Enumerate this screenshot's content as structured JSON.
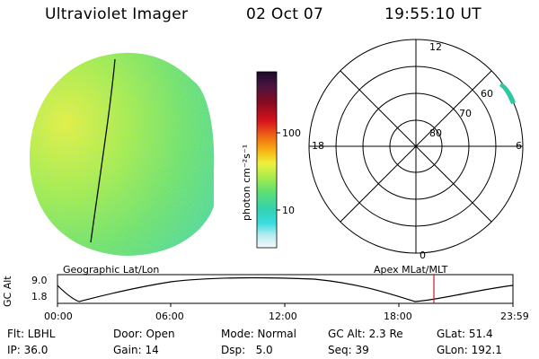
{
  "header": {
    "instrument": "Ultraviolet Imager",
    "date": "02 Oct 07",
    "time": "19:55:10 UT"
  },
  "colorbar": {
    "label": "photon cm⁻²s⁻¹",
    "ticks": [
      "100",
      "10"
    ]
  },
  "polar_plot": {
    "mlt_labels": {
      "top": "12",
      "left": "18",
      "right": "6",
      "bottom": "0"
    },
    "mlat_labels": [
      "60",
      "70",
      "80"
    ]
  },
  "timeline": {
    "ylabel": "GC Alt",
    "y_ticks": [
      "9.0",
      "1.8"
    ],
    "left_caption": "Geographic Lat/Lon",
    "right_caption": "Apex MLat/MLT",
    "x_ticks": [
      "00:00",
      "06:00",
      "12:00",
      "18:00",
      "23:59"
    ]
  },
  "info": {
    "filter": "Flt: LBHL",
    "door": "Door: Open",
    "mode": "Mode: Normal",
    "gc_alt": "GC Alt: 2.3 Re",
    "glat": "GLat: 51.4",
    "ip": "IP: 36.0",
    "gain": "Gain: 14",
    "dsp": "Dsp:   5.0",
    "seq": "Seq: 39",
    "glon": "GLon: 192.1"
  },
  "colors": {
    "disk_bright": "#c8f03c",
    "disk_mid": "#6ee66e",
    "disk_dim": "#3cd2aa",
    "aurora": "#28c8a0",
    "marker": "#c81e1e"
  }
}
